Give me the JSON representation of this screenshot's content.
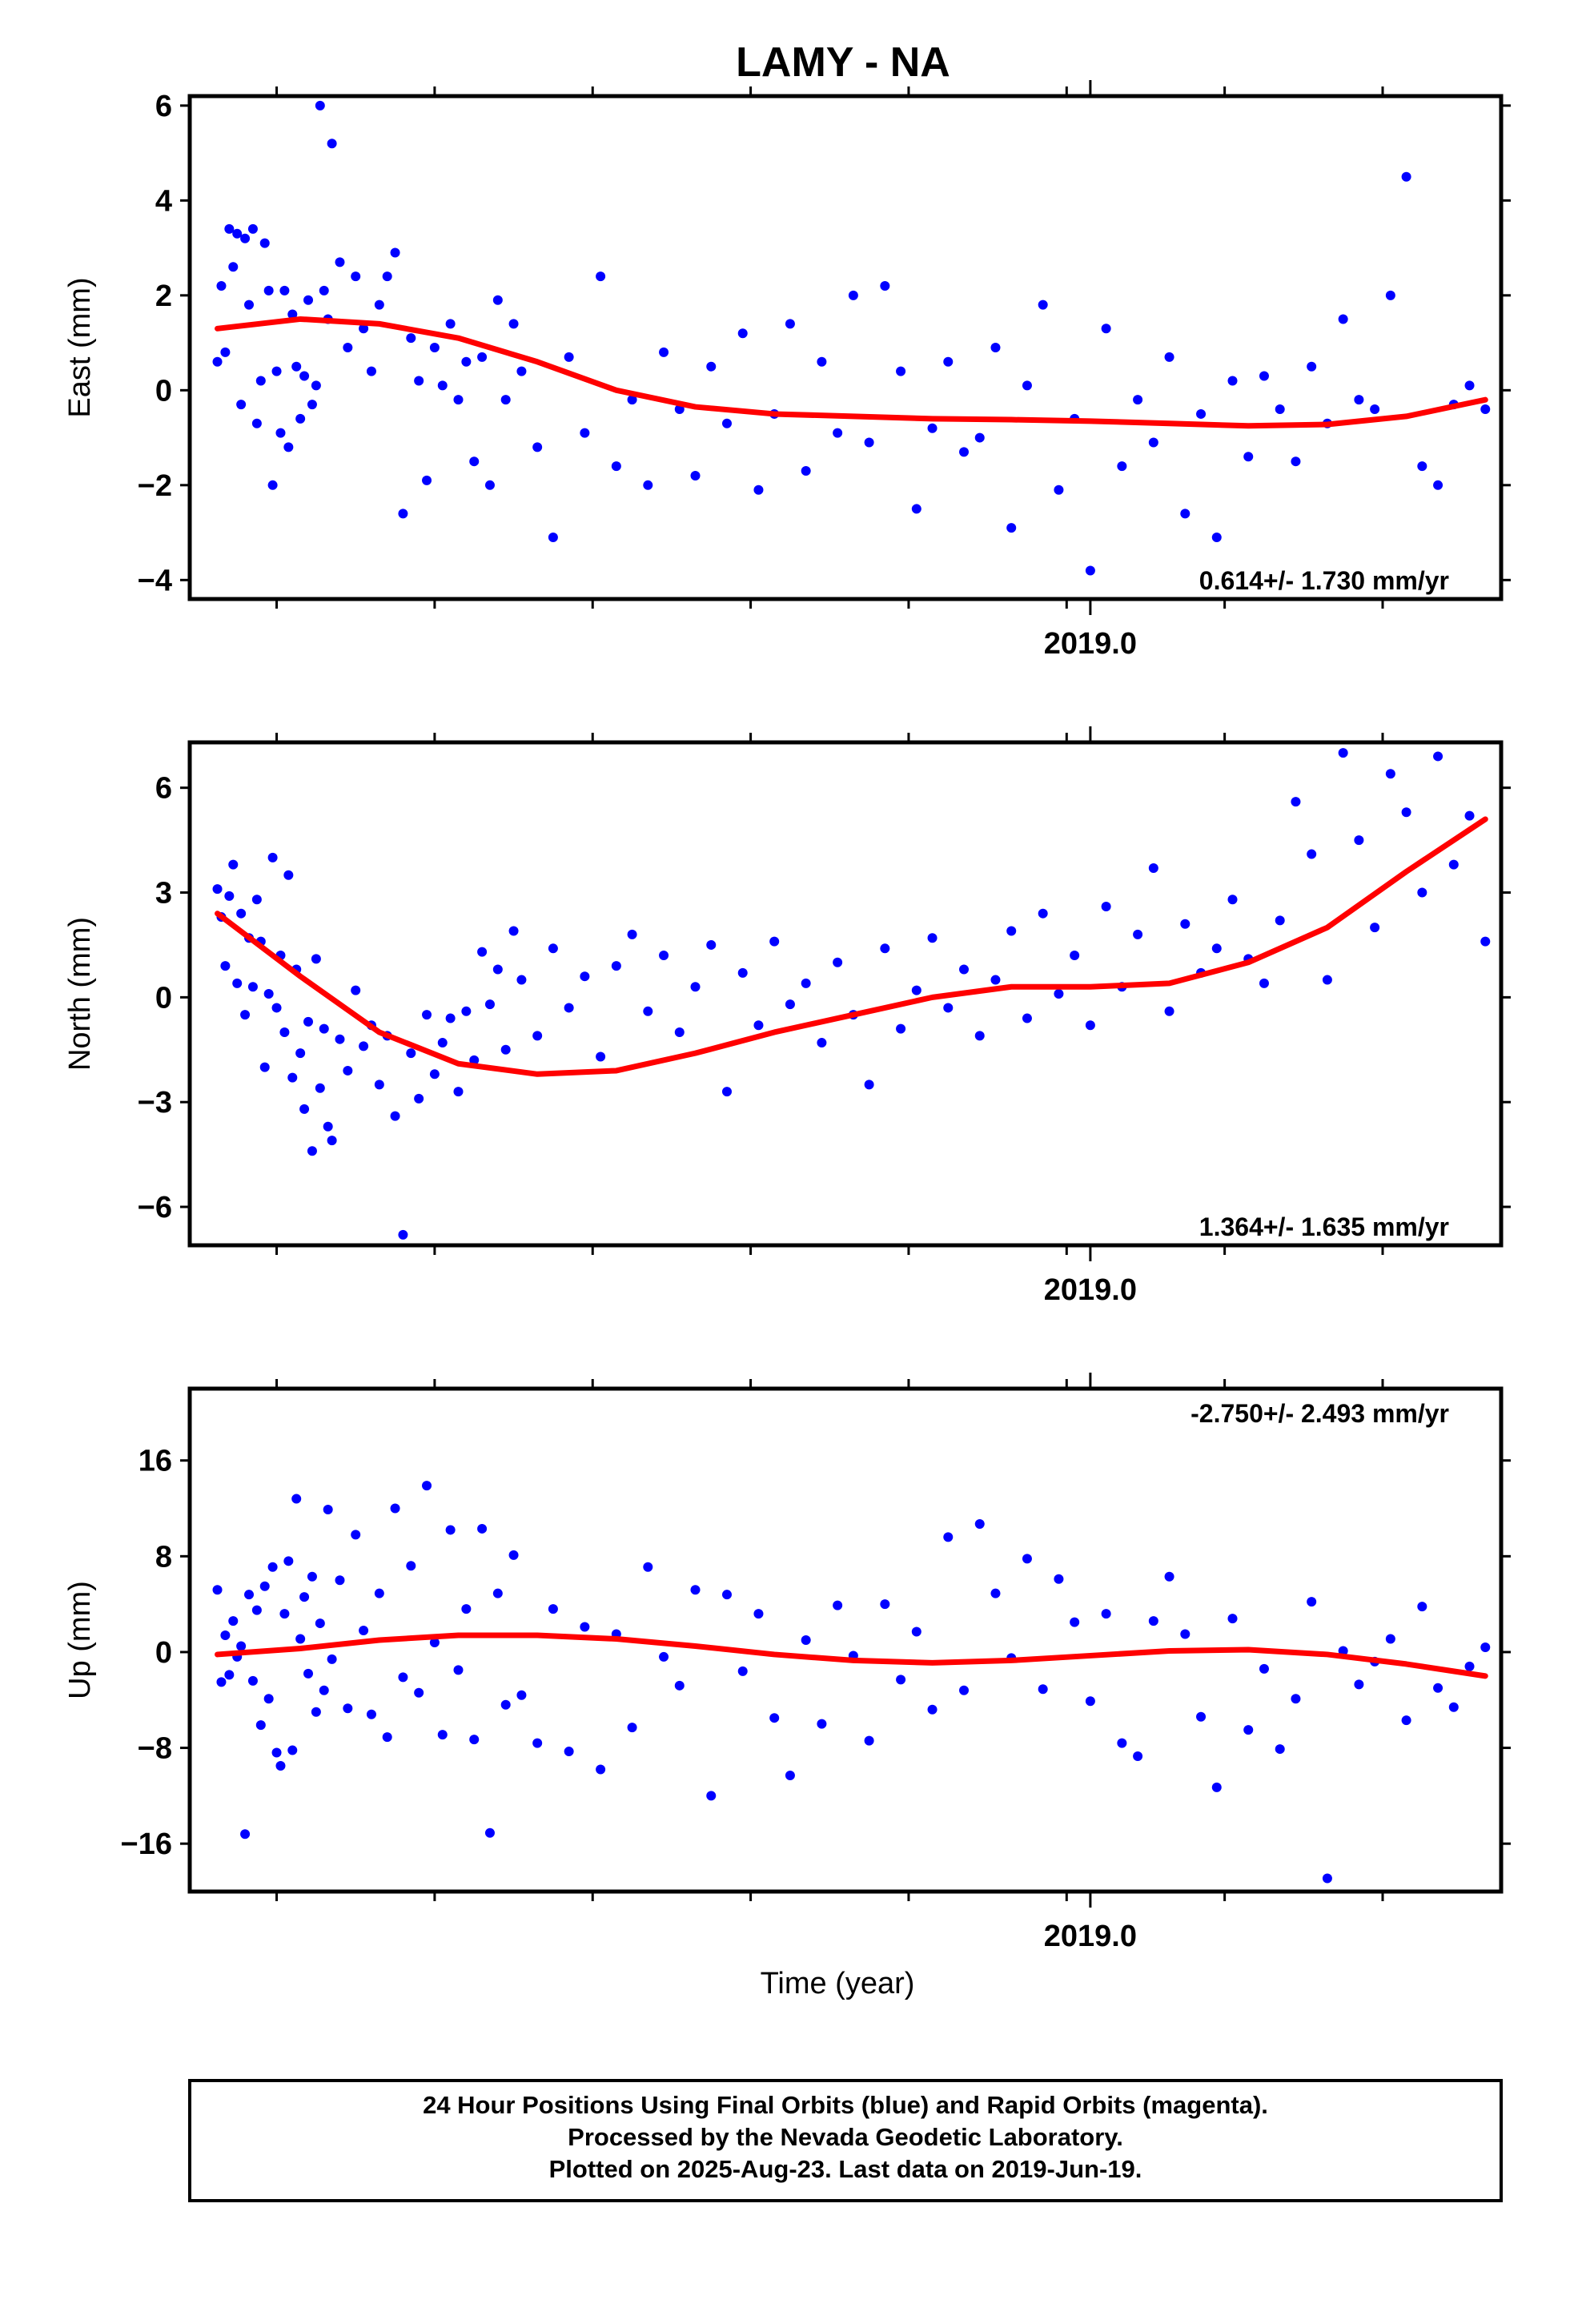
{
  "footer": {
    "lines": [
      "24 Hour Positions Using Final Orbits (blue) and Rapid Orbits (magenta).",
      "Processed by the Nevada Geodetic Laboratory.",
      "Plotted on 2025-Aug-23. Last data on 2019-Jun-19."
    ]
  },
  "colors": {
    "points": "#0000ff",
    "trend": "#ff0000",
    "frame": "#000000"
  },
  "chart_data": [
    {
      "type": "scatter",
      "title": "LAMY - NA",
      "xlabel": "",
      "ylabel": "East (mm)",
      "xlim": [
        2017.86,
        2019.52
      ],
      "ylim": [
        -4.4,
        6.2
      ],
      "yticks": [
        -4,
        -2,
        0,
        2,
        4,
        6
      ],
      "ytick_labels": [
        "−4",
        "−2",
        "0",
        "2",
        "4",
        "6"
      ],
      "xticks": [
        2019.0
      ],
      "xtick_labels": [
        "2019.0"
      ],
      "minor_xticks": [
        2017.97,
        2018.17,
        2018.37,
        2018.57,
        2018.77,
        2018.97,
        2019.17,
        2019.37
      ],
      "rate_label": "0.614+/- 1.730 mm/yr",
      "rate_position": "bottom-right",
      "series": [
        {
          "type": "scatter",
          "x": [
            2017.895,
            2017.9,
            2017.905,
            2017.91,
            2017.915,
            2017.92,
            2017.925,
            2017.93,
            2017.935,
            2017.94,
            2017.945,
            2017.95,
            2017.955,
            2017.96,
            2017.965,
            2017.97,
            2017.975,
            2017.98,
            2017.985,
            2017.99,
            2017.995,
            2018.0,
            2018.005,
            2018.01,
            2018.015,
            2018.02,
            2018.025,
            2018.03,
            2018.035,
            2018.04,
            2018.05,
            2018.06,
            2018.07,
            2018.08,
            2018.09,
            2018.1,
            2018.11,
            2018.12,
            2018.13,
            2018.14,
            2018.15,
            2018.16,
            2018.17,
            2018.18,
            2018.19,
            2018.2,
            2018.21,
            2018.22,
            2018.23,
            2018.24,
            2018.25,
            2018.26,
            2018.27,
            2018.28,
            2018.3,
            2018.32,
            2018.34,
            2018.36,
            2018.38,
            2018.4,
            2018.42,
            2018.44,
            2018.46,
            2018.48,
            2018.5,
            2018.52,
            2018.54,
            2018.56,
            2018.58,
            2018.6,
            2018.62,
            2018.64,
            2018.66,
            2018.68,
            2018.7,
            2018.72,
            2018.74,
            2018.76,
            2018.78,
            2018.8,
            2018.82,
            2018.84,
            2018.86,
            2018.88,
            2018.9,
            2018.92,
            2018.94,
            2018.96,
            2018.98,
            2019.0,
            2019.02,
            2019.04,
            2019.06,
            2019.08,
            2019.1,
            2019.12,
            2019.14,
            2019.16,
            2019.18,
            2019.2,
            2019.22,
            2019.24,
            2019.26,
            2019.28,
            2019.3,
            2019.32,
            2019.34,
            2019.36,
            2019.38,
            2019.4,
            2019.42,
            2019.44,
            2019.46,
            2019.48,
            2019.5
          ],
          "y": [
            0.6,
            2.2,
            0.8,
            3.4,
            2.6,
            3.3,
            -0.3,
            3.2,
            1.8,
            3.4,
            -0.7,
            0.2,
            3.1,
            2.1,
            -2.0,
            0.4,
            -0.9,
            2.1,
            -1.2,
            1.6,
            0.5,
            -0.6,
            0.3,
            1.9,
            -0.3,
            0.1,
            6.0,
            2.1,
            1.5,
            5.2,
            2.7,
            0.9,
            2.4,
            1.3,
            0.4,
            1.8,
            2.4,
            2.9,
            -2.6,
            1.1,
            0.2,
            -1.9,
            0.9,
            0.1,
            1.4,
            -0.2,
            0.6,
            -1.5,
            0.7,
            -2.0,
            1.9,
            -0.2,
            1.4,
            0.4,
            -1.2,
            -3.1,
            0.7,
            -0.9,
            2.4,
            -1.6,
            -0.2,
            -2.0,
            0.8,
            -0.4,
            -1.8,
            0.5,
            -0.7,
            1.2,
            -2.1,
            -0.5,
            1.4,
            -1.7,
            0.6,
            -0.9,
            2.0,
            -1.1,
            2.2,
            0.4,
            -2.5,
            -0.8,
            0.6,
            -1.3,
            -1.0,
            0.9,
            -2.9,
            0.1,
            1.8,
            -2.1,
            -0.6,
            -3.8,
            1.3,
            -1.6,
            -0.2,
            -1.1,
            0.7,
            -2.6,
            -0.5,
            -3.1,
            0.2,
            -1.4,
            0.3,
            -0.4,
            -1.5,
            0.5,
            -0.7,
            1.5,
            -0.2,
            -0.4,
            2.0,
            4.5,
            -1.6,
            -2.0,
            -0.3,
            0.1,
            -0.4
          ],
          "color": "#0000ff"
        },
        {
          "type": "line",
          "x": [
            2017.895,
            2018.0,
            2018.1,
            2018.2,
            2018.3,
            2018.4,
            2018.5,
            2018.6,
            2018.7,
            2018.8,
            2018.9,
            2019.0,
            2019.1,
            2019.2,
            2019.3,
            2019.4,
            2019.5
          ],
          "y": [
            1.3,
            1.5,
            1.4,
            1.1,
            0.6,
            0.0,
            -0.35,
            -0.5,
            -0.55,
            -0.6,
            -0.62,
            -0.65,
            -0.7,
            -0.75,
            -0.72,
            -0.55,
            -0.2
          ],
          "color": "#ff0000"
        }
      ]
    },
    {
      "type": "scatter",
      "xlabel": "",
      "ylabel": "North (mm)",
      "xlim": [
        2017.86,
        2019.52
      ],
      "ylim": [
        -7.1,
        7.3
      ],
      "yticks": [
        -6,
        -3,
        0,
        3,
        6
      ],
      "ytick_labels": [
        "−6",
        "−3",
        "0",
        "3",
        "6"
      ],
      "xticks": [
        2019.0
      ],
      "xtick_labels": [
        "2019.0"
      ],
      "minor_xticks": [
        2017.97,
        2018.17,
        2018.37,
        2018.57,
        2018.77,
        2018.97,
        2019.17,
        2019.37
      ],
      "rate_label": "1.364+/- 1.635 mm/yr",
      "rate_position": "bottom-right",
      "series": [
        {
          "type": "scatter",
          "x": [
            2017.895,
            2017.9,
            2017.905,
            2017.91,
            2017.915,
            2017.92,
            2017.925,
            2017.93,
            2017.935,
            2017.94,
            2017.945,
            2017.95,
            2017.955,
            2017.96,
            2017.965,
            2017.97,
            2017.975,
            2017.98,
            2017.985,
            2017.99,
            2017.995,
            2018.0,
            2018.005,
            2018.01,
            2018.015,
            2018.02,
            2018.025,
            2018.03,
            2018.035,
            2018.04,
            2018.05,
            2018.06,
            2018.07,
            2018.08,
            2018.09,
            2018.1,
            2018.11,
            2018.12,
            2018.13,
            2018.14,
            2018.15,
            2018.16,
            2018.17,
            2018.18,
            2018.19,
            2018.2,
            2018.21,
            2018.22,
            2018.23,
            2018.24,
            2018.25,
            2018.26,
            2018.27,
            2018.28,
            2018.3,
            2018.32,
            2018.34,
            2018.36,
            2018.38,
            2018.4,
            2018.42,
            2018.44,
            2018.46,
            2018.48,
            2018.5,
            2018.52,
            2018.54,
            2018.56,
            2018.58,
            2018.6,
            2018.62,
            2018.64,
            2018.66,
            2018.68,
            2018.7,
            2018.72,
            2018.74,
            2018.76,
            2018.78,
            2018.8,
            2018.82,
            2018.84,
            2018.86,
            2018.88,
            2018.9,
            2018.92,
            2018.94,
            2018.96,
            2018.98,
            2019.0,
            2019.02,
            2019.04,
            2019.06,
            2019.08,
            2019.1,
            2019.12,
            2019.14,
            2019.16,
            2019.18,
            2019.2,
            2019.22,
            2019.24,
            2019.26,
            2019.28,
            2019.3,
            2019.32,
            2019.34,
            2019.36,
            2019.38,
            2019.4,
            2019.42,
            2019.44,
            2019.46,
            2019.48,
            2019.5
          ],
          "y": [
            3.1,
            2.3,
            0.9,
            2.9,
            3.8,
            0.4,
            2.4,
            -0.5,
            1.7,
            0.3,
            2.8,
            1.6,
            -2.0,
            0.1,
            4.0,
            -0.3,
            1.2,
            -1.0,
            3.5,
            -2.3,
            0.8,
            -1.6,
            -3.2,
            -0.7,
            -4.4,
            1.1,
            -2.6,
            -0.9,
            -3.7,
            -4.1,
            -1.2,
            -2.1,
            0.2,
            -1.4,
            -0.8,
            -2.5,
            -1.1,
            -3.4,
            -6.8,
            -1.6,
            -2.9,
            -0.5,
            -2.2,
            -1.3,
            -0.6,
            -2.7,
            -0.4,
            -1.8,
            1.3,
            -0.2,
            0.8,
            -1.5,
            1.9,
            0.5,
            -1.1,
            1.4,
            -0.3,
            0.6,
            -1.7,
            0.9,
            1.8,
            -0.4,
            1.2,
            -1.0,
            0.3,
            1.5,
            -2.7,
            0.7,
            -0.8,
            1.6,
            -0.2,
            0.4,
            -1.3,
            1.0,
            -0.5,
            -2.5,
            1.4,
            -0.9,
            0.2,
            1.7,
            -0.3,
            0.8,
            -1.1,
            0.5,
            1.9,
            -0.6,
            2.4,
            0.1,
            1.2,
            -0.8,
            2.6,
            0.3,
            1.8,
            3.7,
            -0.4,
            2.1,
            0.7,
            1.4,
            2.8,
            1.1,
            0.4,
            2.2,
            5.6,
            4.1,
            0.5,
            7.0,
            4.5,
            2.0,
            6.4,
            5.3,
            3.0,
            6.9,
            3.8,
            5.2,
            1.6
          ],
          "color": "#0000ff"
        },
        {
          "type": "line",
          "x": [
            2017.895,
            2018.0,
            2018.1,
            2018.2,
            2018.3,
            2018.4,
            2018.5,
            2018.6,
            2018.7,
            2018.8,
            2018.9,
            2019.0,
            2019.1,
            2019.2,
            2019.3,
            2019.4,
            2019.5
          ],
          "y": [
            2.4,
            0.6,
            -1.0,
            -1.9,
            -2.2,
            -2.1,
            -1.6,
            -1.0,
            -0.5,
            0.0,
            0.3,
            0.3,
            0.4,
            1.0,
            2.0,
            3.6,
            5.1
          ],
          "color": "#ff0000"
        }
      ]
    },
    {
      "type": "scatter",
      "xlabel": "Time (year)",
      "ylabel": "Up (mm)",
      "xlim": [
        2017.86,
        2019.52
      ],
      "ylim": [
        -20,
        22
      ],
      "yticks": [
        -16,
        -8,
        0,
        8,
        16
      ],
      "ytick_labels": [
        "−16",
        "−8",
        "0",
        "8",
        "16"
      ],
      "xticks": [
        2019.0
      ],
      "xtick_labels": [
        "2019.0"
      ],
      "minor_xticks": [
        2017.97,
        2018.17,
        2018.37,
        2018.57,
        2018.77,
        2018.97,
        2019.17,
        2019.37
      ],
      "rate_label": "-2.750+/- 2.493 mm/yr",
      "rate_position": "top-right",
      "series": [
        {
          "type": "scatter",
          "x": [
            2017.895,
            2017.9,
            2017.905,
            2017.91,
            2017.915,
            2017.92,
            2017.925,
            2017.93,
            2017.935,
            2017.94,
            2017.945,
            2017.95,
            2017.955,
            2017.96,
            2017.965,
            2017.97,
            2017.975,
            2017.98,
            2017.985,
            2017.99,
            2017.995,
            2018.0,
            2018.005,
            2018.01,
            2018.015,
            2018.02,
            2018.025,
            2018.03,
            2018.035,
            2018.04,
            2018.05,
            2018.06,
            2018.07,
            2018.08,
            2018.09,
            2018.1,
            2018.11,
            2018.12,
            2018.13,
            2018.14,
            2018.15,
            2018.16,
            2018.17,
            2018.18,
            2018.19,
            2018.2,
            2018.21,
            2018.22,
            2018.23,
            2018.24,
            2018.25,
            2018.26,
            2018.27,
            2018.28,
            2018.3,
            2018.32,
            2018.34,
            2018.36,
            2018.38,
            2018.4,
            2018.42,
            2018.44,
            2018.46,
            2018.48,
            2018.5,
            2018.52,
            2018.54,
            2018.56,
            2018.58,
            2018.6,
            2018.62,
            2018.64,
            2018.66,
            2018.68,
            2018.7,
            2018.72,
            2018.74,
            2018.76,
            2018.78,
            2018.8,
            2018.82,
            2018.84,
            2018.86,
            2018.88,
            2018.9,
            2018.92,
            2018.94,
            2018.96,
            2018.98,
            2019.0,
            2019.02,
            2019.04,
            2019.06,
            2019.08,
            2019.1,
            2019.12,
            2019.14,
            2019.16,
            2019.18,
            2019.2,
            2019.22,
            2019.24,
            2019.26,
            2019.28,
            2019.3,
            2019.32,
            2019.34,
            2019.36,
            2019.38,
            2019.4,
            2019.42,
            2019.44,
            2019.46,
            2019.48,
            2019.5
          ],
          "y": [
            5.2,
            -2.5,
            1.4,
            -1.9,
            2.6,
            -0.4,
            0.5,
            -15.2,
            4.8,
            -2.4,
            3.5,
            -6.1,
            5.5,
            -3.9,
            7.1,
            -8.4,
            -9.5,
            3.2,
            7.6,
            -8.2,
            12.8,
            1.1,
            4.6,
            -1.8,
            6.3,
            -5.0,
            2.4,
            -3.2,
            11.9,
            -0.6,
            6.0,
            -4.7,
            9.8,
            1.8,
            -5.2,
            4.9,
            -7.1,
            12.0,
            -2.1,
            7.2,
            -3.4,
            13.9,
            0.8,
            -6.9,
            10.2,
            -1.5,
            3.6,
            -7.3,
            10.3,
            -15.1,
            4.9,
            -4.4,
            8.1,
            -3.6,
            -7.6,
            3.6,
            -8.3,
            2.1,
            -9.8,
            1.5,
            -6.3,
            7.1,
            -0.4,
            -2.8,
            5.2,
            -12.0,
            4.8,
            -1.6,
            3.2,
            -5.5,
            -10.3,
            1.0,
            -6.0,
            3.9,
            -0.3,
            -7.4,
            4.0,
            -2.3,
            1.7,
            -4.8,
            9.6,
            -3.2,
            10.7,
            4.9,
            -0.5,
            7.8,
            -3.1,
            6.1,
            2.5,
            -4.1,
            3.2,
            -7.6,
            -8.7,
            2.6,
            6.3,
            1.5,
            -5.4,
            -11.3,
            2.8,
            -6.5,
            -1.4,
            -8.1,
            -3.9,
            4.2,
            -18.9,
            0.1,
            -2.7,
            -0.8,
            1.1,
            -5.7,
            3.8,
            -3.0,
            -4.6,
            -1.2,
            0.4
          ],
          "color": "#0000ff"
        },
        {
          "type": "line",
          "x": [
            2017.895,
            2018.0,
            2018.1,
            2018.2,
            2018.3,
            2018.4,
            2018.5,
            2018.6,
            2018.7,
            2018.8,
            2018.9,
            2019.0,
            2019.1,
            2019.2,
            2019.3,
            2019.4,
            2019.5
          ],
          "y": [
            -0.2,
            0.3,
            1.0,
            1.4,
            1.4,
            1.1,
            0.5,
            -0.2,
            -0.7,
            -0.9,
            -0.7,
            -0.3,
            0.1,
            0.2,
            -0.2,
            -1.0,
            -2.0
          ],
          "color": "#ff0000"
        }
      ]
    }
  ]
}
